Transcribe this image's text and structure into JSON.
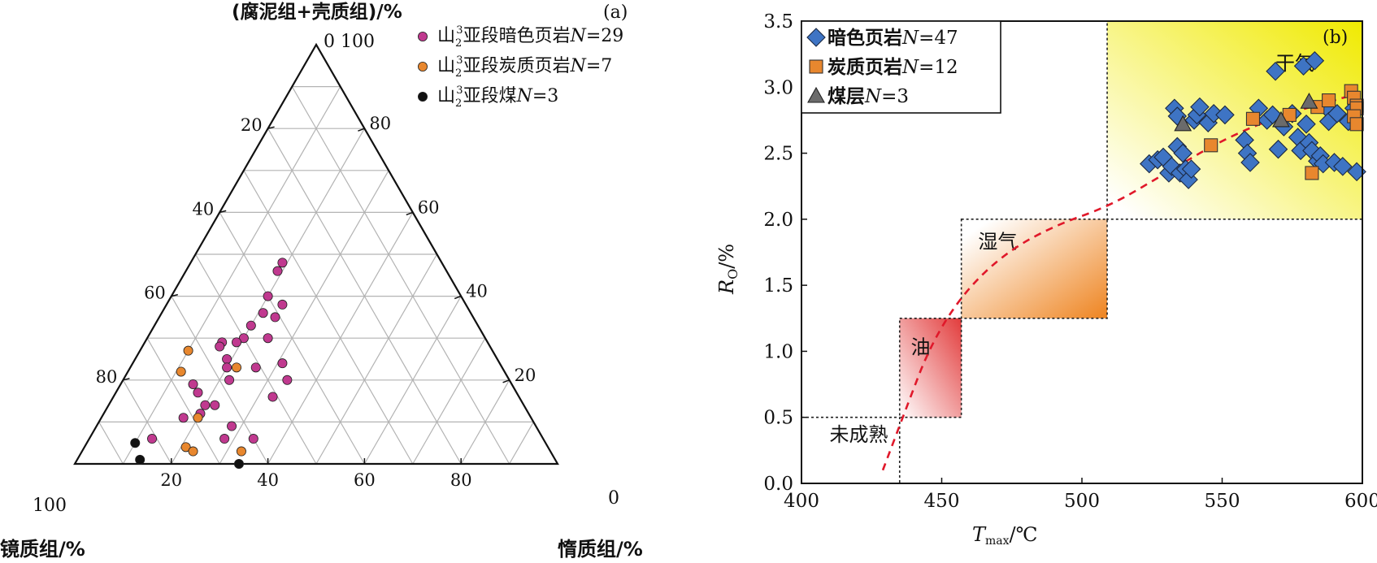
{
  "chart_data": [
    {
      "type": "ternary-scatter",
      "panel_label": "(a)",
      "top_axis_label": "(腐泥组+壳质组)/%",
      "left_axis_label": "镜质组/%",
      "right_axis_label": "惰质组/%",
      "tick_values": [
        0,
        20,
        40,
        60,
        80,
        100
      ],
      "top_corner_label": "0 100",
      "left_corner_label": "100",
      "right_corner_label": "0",
      "legend_placement": "top-right",
      "series": [
        {
          "name": "山23亚段暗色页岩N=29",
          "legend_text": "山",
          "legend_sub": "2",
          "legend_sup": "3",
          "legend_rest": "亚段暗色页岩",
          "legend_n": "N",
          "legend_count": "=29",
          "color": "#c0398f",
          "points": [
            {
              "v": 33,
              "i": 19,
              "s": 48
            },
            {
              "v": 35,
              "i": 19,
              "s": 46
            },
            {
              "v": 40,
              "i": 20,
              "s": 40
            },
            {
              "v": 43,
              "i": 21,
              "s": 36
            },
            {
              "v": 41,
              "i": 24,
              "s": 35
            },
            {
              "v": 45,
              "i": 25,
              "s": 30
            },
            {
              "v": 38,
              "i": 24,
              "s": 38
            },
            {
              "v": 47,
              "i": 20,
              "s": 33
            },
            {
              "v": 50,
              "i": 20,
              "s": 30
            },
            {
              "v": 45,
              "i": 31,
              "s": 24
            },
            {
              "v": 52,
              "i": 19,
              "s": 29
            },
            {
              "v": 51,
              "i": 26,
              "s": 23
            },
            {
              "v": 55,
              "i": 16,
              "s": 29
            },
            {
              "v": 56,
              "i": 16,
              "s": 28
            },
            {
              "v": 56,
              "i": 19,
              "s": 25
            },
            {
              "v": 57,
              "i": 20,
              "s": 23
            },
            {
              "v": 58,
              "i": 22,
              "s": 20
            },
            {
              "v": 66,
              "i": 15,
              "s": 19
            },
            {
              "v": 64,
              "i": 22,
              "s": 14
            },
            {
              "v": 63,
              "i": 28,
              "s": 9
            },
            {
              "v": 60,
              "i": 34,
              "s": 6
            },
            {
              "v": 46,
              "i": 34,
              "s": 20
            },
            {
              "v": 51,
              "i": 33,
              "s": 16
            },
            {
              "v": 66,
              "i": 20,
              "s": 14
            },
            {
              "v": 68,
              "i": 20,
              "s": 12
            },
            {
              "v": 66,
              "i": 17,
              "s": 17
            },
            {
              "v": 72,
              "i": 17,
              "s": 11
            },
            {
              "v": 66,
              "i": 28,
              "s": 6
            },
            {
              "v": 81,
              "i": 13,
              "s": 6
            }
          ]
        },
        {
          "name": "山23亚段炭质页岩N=7",
          "legend_text": "山",
          "legend_sub": "2",
          "legend_sup": "3",
          "legend_rest": "亚段炭质页岩",
          "legend_n": "N",
          "legend_count": "=7",
          "color": "#e8872e",
          "points": [
            {
              "v": 55,
              "i": 22,
              "s": 23
            },
            {
              "v": 63,
              "i": 10,
              "s": 27
            },
            {
              "v": 67,
              "i": 11,
              "s": 22
            },
            {
              "v": 69,
              "i": 20,
              "s": 11
            },
            {
              "v": 64,
              "i": 33,
              "s": 3
            },
            {
              "v": 75,
              "i": 21,
              "s": 4
            },
            {
              "v": 74,
              "i": 23,
              "s": 3
            }
          ]
        },
        {
          "name": "山23亚段煤N=3",
          "legend_text": "山",
          "legend_sub": "2",
          "legend_sup": "3",
          "legend_rest": "亚段煤",
          "legend_n": "N",
          "legend_count": "=3",
          "color": "#111111",
          "points": [
            {
              "v": 85,
              "i": 10,
              "s": 5
            },
            {
              "v": 86,
              "i": 13,
              "s": 1
            },
            {
              "v": 66,
              "i": 34,
              "s": 0
            }
          ]
        }
      ]
    },
    {
      "type": "scatter",
      "panel_label": "(b)",
      "xlabel_main": "T",
      "xlabel_sub": "max",
      "xlabel_unit": "/℃",
      "ylabel_main": "R",
      "ylabel_sub": "O",
      "ylabel_unit": "/%",
      "xlim": [
        400,
        600
      ],
      "ylim": [
        0,
        3.5
      ],
      "x_ticks": [
        "400",
        "450",
        "500",
        "550",
        "600"
      ],
      "y_ticks": [
        "0.0",
        "0.5",
        "1.0",
        "1.5",
        "2.0",
        "2.5",
        "3.0",
        "3.5"
      ],
      "legend_placement": "top-left",
      "zones": [
        {
          "name": "未成熟",
          "x0": 400,
          "x1": 435,
          "y0": 0,
          "y1": 0.5,
          "fill": "none",
          "label_x": 410,
          "label_y": 0.32
        },
        {
          "name": "油",
          "x0": 435,
          "x1": 457,
          "y0": 0.5,
          "y1": 1.25,
          "fill": "#e03a3a",
          "label_x": 439,
          "label_y": 0.98
        },
        {
          "name": "湿气",
          "x0": 457,
          "x1": 509,
          "y0": 1.25,
          "y1": 2.0,
          "fill": "#ee8420",
          "label_x": 463,
          "label_y": 1.78
        },
        {
          "name": "干气",
          "x0": 509,
          "x1": 600,
          "y0": 2.0,
          "y1": 3.5,
          "fill": "#f2ee10",
          "label_x": 569,
          "label_y": 3.13
        }
      ],
      "trend_curve": [
        [
          429,
          0.1
        ],
        [
          437,
          0.55
        ],
        [
          446,
          1.05
        ],
        [
          458,
          1.45
        ],
        [
          473,
          1.75
        ],
        [
          490,
          1.95
        ],
        [
          510,
          2.1
        ],
        [
          530,
          2.35
        ],
        [
          550,
          2.6
        ],
        [
          570,
          2.78
        ],
        [
          590,
          2.9
        ],
        [
          598,
          2.95
        ]
      ],
      "series": [
        {
          "name": "暗色页岩N=47",
          "legend_prefix": "暗色页岩",
          "legend_n": "N",
          "legend_count": "=47",
          "marker": "diamond",
          "color": "#3e74c4",
          "points": [
            [
              524,
              2.42
            ],
            [
              527,
              2.45
            ],
            [
              529,
              2.47
            ],
            [
              531,
              2.35
            ],
            [
              532,
              2.4
            ],
            [
              533,
              2.84
            ],
            [
              534,
              2.78
            ],
            [
              534,
              2.55
            ],
            [
              535,
              2.35
            ],
            [
              536,
              2.5
            ],
            [
              537,
              2.38
            ],
            [
              538,
              2.3
            ],
            [
              539,
              2.38
            ],
            [
              540,
              2.75
            ],
            [
              541,
              2.79
            ],
            [
              542,
              2.85
            ],
            [
              545,
              2.73
            ],
            [
              547,
              2.8
            ],
            [
              551,
              2.79
            ],
            [
              558,
              2.6
            ],
            [
              559,
              2.5
            ],
            [
              560,
              2.43
            ],
            [
              563,
              2.84
            ],
            [
              566,
              2.75
            ],
            [
              568,
              2.79
            ],
            [
              569,
              3.12
            ],
            [
              570,
              2.53
            ],
            [
              572,
              2.7
            ],
            [
              575,
              2.8
            ],
            [
              577,
              2.62
            ],
            [
              578,
              2.52
            ],
            [
              579,
              3.16
            ],
            [
              580,
              2.72
            ],
            [
              581,
              2.58
            ],
            [
              582,
              2.52
            ],
            [
              583,
              3.2
            ],
            [
              584,
              2.44
            ],
            [
              585,
              2.48
            ],
            [
              586,
              2.42
            ],
            [
              587,
              2.85
            ],
            [
              588,
              2.74
            ],
            [
              590,
              2.43
            ],
            [
              591,
              2.8
            ],
            [
              593,
              2.4
            ],
            [
              595,
              2.74
            ],
            [
              597,
              2.84
            ],
            [
              598,
              2.36
            ]
          ]
        },
        {
          "name": "炭质页岩N=12",
          "legend_prefix": "炭质页岩",
          "legend_n": "N",
          "legend_count": "=12",
          "marker": "square",
          "color": "#e8872e",
          "points": [
            [
              546,
              2.56
            ],
            [
              561,
              2.76
            ],
            [
              574,
              2.79
            ],
            [
              582,
              2.35
            ],
            [
              584,
              2.85
            ],
            [
              588,
              2.9
            ],
            [
              596,
              2.97
            ],
            [
              597,
              2.92
            ],
            [
              598,
              2.86
            ],
            [
              598,
              2.84
            ],
            [
              597,
              2.78
            ],
            [
              598,
              2.72
            ]
          ]
        },
        {
          "name": "煤层N=3",
          "legend_prefix": "煤层",
          "legend_n": "N",
          "legend_count": "=3",
          "marker": "triangle",
          "color": "#6b6b6b",
          "points": [
            [
              536,
              2.72
            ],
            [
              571,
              2.75
            ],
            [
              581,
              2.89
            ]
          ]
        }
      ]
    }
  ]
}
